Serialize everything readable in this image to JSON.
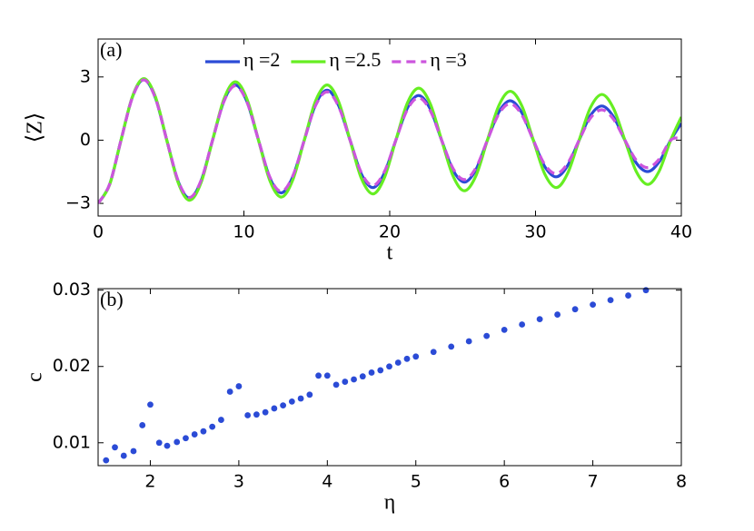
{
  "chart_data": [
    {
      "type": "line",
      "annotation": "(a)",
      "y_label": "⟨Z⟩",
      "x_label": "t",
      "x": [
        0,
        0.79,
        1.57,
        2.36,
        3.14,
        3.93,
        4.71,
        5.5,
        6.28,
        7.07,
        7.85,
        8.64,
        9.42,
        10.21,
        11.0,
        11.78,
        12.57,
        13.35,
        14.14,
        14.92,
        15.71,
        16.49,
        17.28,
        18.06,
        18.85,
        19.63,
        20.42,
        21.21,
        21.99,
        22.78,
        23.56,
        24.35,
        25.13,
        25.92,
        26.7,
        27.49,
        28.27,
        29.06,
        29.85,
        30.63,
        31.42,
        32.2,
        32.99,
        33.77,
        34.56,
        35.34,
        36.13,
        36.91,
        37.7,
        38.48,
        39.27,
        40
      ],
      "series": [
        {
          "name": "η =2",
          "color": "#2b4bd6",
          "dashed": false,
          "values": [
            -3,
            -2.1,
            0,
            2.06,
            2.87,
            2.01,
            0,
            -1.97,
            -2.75,
            -1.92,
            0,
            1.88,
            2.62,
            1.83,
            0,
            -1.79,
            -2.5,
            -1.74,
            0,
            1.7,
            2.37,
            1.65,
            0,
            -1.61,
            -2.25,
            -1.57,
            0,
            1.52,
            2.12,
            1.48,
            0,
            -1.43,
            -1.99,
            -1.39,
            0,
            1.34,
            1.87,
            1.3,
            0,
            -1.25,
            -1.74,
            -1.21,
            0,
            1.17,
            1.62,
            1.12,
            0,
            -1.08,
            -1.49,
            -1.03,
            0,
            0.8
          ]
        },
        {
          "name": "η =2.5",
          "color": "#66ee22",
          "dashed": false,
          "values": [
            -3,
            -2.11,
            0,
            2.08,
            2.92,
            2.06,
            0,
            -2.03,
            -2.85,
            -2.0,
            0,
            1.97,
            2.77,
            1.95,
            0,
            -1.92,
            -2.7,
            -1.89,
            0,
            1.87,
            2.62,
            1.84,
            0,
            -1.82,
            -2.55,
            -1.79,
            0,
            1.76,
            2.47,
            1.73,
            0,
            -1.71,
            -2.4,
            -1.68,
            0,
            1.65,
            2.32,
            1.63,
            0,
            -1.6,
            -2.25,
            -1.58,
            0,
            1.55,
            2.17,
            1.52,
            0,
            -1.49,
            -2.1,
            -1.47,
            0,
            1.1
          ]
        },
        {
          "name": "η =3",
          "color": "#cc55dd",
          "dashed": true,
          "values": [
            -3,
            -2.09,
            0,
            2.04,
            2.86,
            1.99,
            0,
            -1.94,
            -2.72,
            -1.89,
            0,
            1.85,
            2.58,
            1.8,
            0,
            -1.75,
            -2.43,
            -1.7,
            0,
            1.65,
            2.29,
            1.6,
            0,
            -1.55,
            -2.15,
            -1.5,
            0,
            1.45,
            2.01,
            1.4,
            0,
            -1.35,
            -1.87,
            -1.3,
            0,
            1.25,
            1.73,
            1.2,
            0,
            -1.15,
            -1.59,
            -1.1,
            0,
            1.05,
            1.44,
            1.0,
            0,
            -0.95,
            -1.3,
            -0.9,
            0,
            0.1
          ]
        }
      ],
      "xlim": [
        0,
        40
      ],
      "xticks": [
        0,
        10,
        20,
        30,
        40
      ],
      "ylim": [
        -3.6,
        4.8
      ],
      "yticks": [
        {
          "value": -3,
          "label": "−3"
        },
        0,
        3
      ],
      "legend": "top"
    },
    {
      "type": "scatter",
      "annotation": "(b)",
      "y_label": "c",
      "x_label": "η",
      "color": "#2b4bd6",
      "x": [
        1.5,
        1.6,
        1.7,
        1.81,
        1.91,
        2.0,
        2.1,
        2.19,
        2.3,
        2.4,
        2.5,
        2.6,
        2.7,
        2.8,
        2.9,
        3.0,
        3.1,
        3.2,
        3.3,
        3.4,
        3.5,
        3.6,
        3.7,
        3.8,
        3.9,
        4.0,
        4.1,
        4.2,
        4.3,
        4.4,
        4.5,
        4.6,
        4.7,
        4.8,
        4.9,
        5.0,
        5.2,
        5.4,
        5.6,
        5.8,
        6.0,
        6.2,
        6.4,
        6.6,
        6.8,
        7.0,
        7.2,
        7.4,
        7.6
      ],
      "values": [
        0.0077,
        0.0094,
        0.0083,
        0.0089,
        0.0123,
        0.015,
        0.01,
        0.0096,
        0.0101,
        0.0106,
        0.0111,
        0.0115,
        0.0121,
        0.013,
        0.0167,
        0.0174,
        0.0136,
        0.0137,
        0.014,
        0.0145,
        0.0149,
        0.0154,
        0.0158,
        0.0163,
        0.0188,
        0.0188,
        0.0176,
        0.018,
        0.0183,
        0.0187,
        0.0192,
        0.0195,
        0.02,
        0.0205,
        0.021,
        0.0213,
        0.0219,
        0.0226,
        0.0233,
        0.024,
        0.0248,
        0.0255,
        0.0262,
        0.0268,
        0.0275,
        0.0281,
        0.0287,
        0.0293,
        0.03
      ],
      "xlim": [
        1.41,
        8
      ],
      "xticks": [
        2,
        3,
        4,
        5,
        6,
        7,
        8
      ],
      "ylim": [
        0.007,
        0.0302
      ],
      "yticks": [
        0.01,
        0.02,
        0.03
      ]
    }
  ]
}
